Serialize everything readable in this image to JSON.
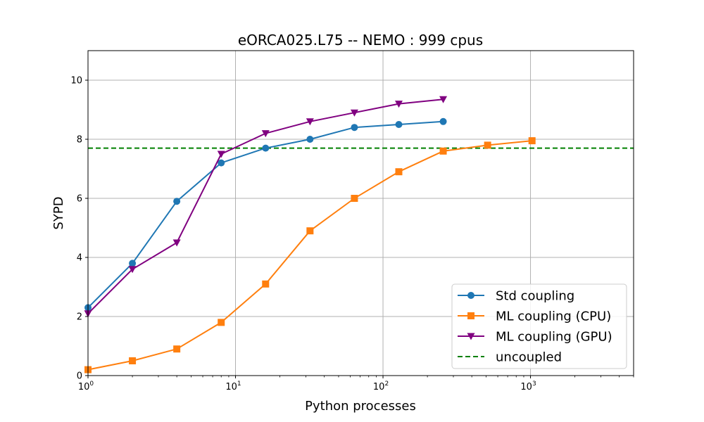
{
  "chart_data": {
    "type": "line",
    "title": "eORCA025.L75 -- NEMO : 999 cpus",
    "xlabel": "Python processes",
    "ylabel": "SYPD",
    "xscale": "log",
    "xlim": [
      1,
      5000
    ],
    "ylim": [
      0,
      11
    ],
    "grid": true,
    "legend_position": "lower-right",
    "x_ticks": [
      {
        "value": 1,
        "base": "10",
        "exp": "0"
      },
      {
        "value": 10,
        "base": "10",
        "exp": "1"
      },
      {
        "value": 100,
        "base": "10",
        "exp": "2"
      },
      {
        "value": 1000,
        "base": "10",
        "exp": "3"
      }
    ],
    "y_ticks": [
      {
        "value": 0,
        "label": "0"
      },
      {
        "value": 2,
        "label": "2"
      },
      {
        "value": 4,
        "label": "4"
      },
      {
        "value": 6,
        "label": "6"
      },
      {
        "value": 8,
        "label": "8"
      },
      {
        "value": 10,
        "label": "10"
      }
    ],
    "series": [
      {
        "name": "Std coupling",
        "color": "#1f77b4",
        "marker": "circle",
        "x": [
          1,
          2,
          4,
          8,
          16,
          32,
          64,
          128,
          256
        ],
        "y": [
          2.3,
          3.8,
          5.9,
          7.2,
          7.7,
          8.0,
          8.4,
          8.5,
          8.6
        ]
      },
      {
        "name": "ML coupling (CPU)",
        "color": "#ff7f0e",
        "marker": "square",
        "x": [
          1,
          2,
          4,
          8,
          16,
          32,
          64,
          128,
          256,
          512,
          1024
        ],
        "y": [
          0.2,
          0.5,
          0.9,
          1.8,
          3.1,
          4.9,
          6.0,
          6.9,
          7.6,
          7.8,
          7.95
        ]
      },
      {
        "name": "ML coupling (GPU)",
        "color": "#800080",
        "marker": "triangle-down",
        "x": [
          1,
          2,
          4,
          8,
          16,
          32,
          64,
          128,
          256
        ],
        "y": [
          2.1,
          3.6,
          4.5,
          7.5,
          8.2,
          8.6,
          8.9,
          9.2,
          9.35
        ]
      }
    ],
    "reference_line": {
      "name": "uncoupled",
      "color": "#008000",
      "style": "dashed",
      "y": 7.7
    }
  }
}
